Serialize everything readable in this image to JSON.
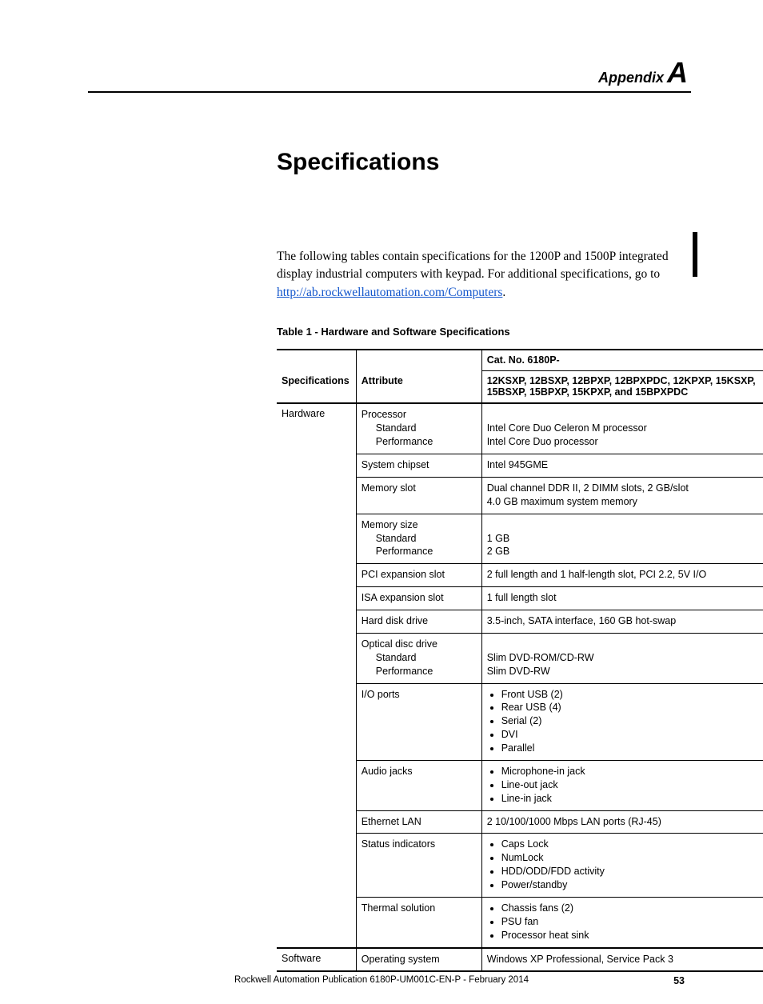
{
  "header": {
    "appendix_word": "Appendix",
    "appendix_letter": "A"
  },
  "title": "Specifications",
  "intro": {
    "text_before_link": "The following tables contain specifications for the 1200P and 1500P integrated display industrial computers with keypad. For additional specifications, go to ",
    "link_text": "http://ab.rockwellautomation.com/Computers",
    "text_after_link": "."
  },
  "table": {
    "caption": "Table 1 - Hardware and Software Specifications",
    "col_headers": {
      "specifications": "Specifications",
      "attribute": "Attribute",
      "catno_label": "Cat. No. 6180P-",
      "catno_models": "12KSXP, 12BSXP, 12BPXP, 12BPXPDC, 12KPXP, 15KSXP, 15BSXP, 15BPXP, 15KPXP, and 15BPXPDC"
    },
    "groups": [
      {
        "group_label": "Hardware",
        "rows": [
          {
            "attr_main": "Processor",
            "attr_subs": [
              "Standard",
              "Performance"
            ],
            "value_lines": [
              "",
              "Intel Core Duo Celeron M processor",
              "Intel Core Duo processor"
            ]
          },
          {
            "attr_main": "System chipset",
            "value_lines": [
              "Intel 945GME"
            ]
          },
          {
            "attr_main": "Memory slot",
            "value_lines": [
              "Dual channel DDR II, 2 DIMM slots, 2 GB/slot",
              "4.0 GB maximum system memory"
            ]
          },
          {
            "attr_main": "Memory size",
            "attr_subs": [
              "Standard",
              "Performance"
            ],
            "value_lines": [
              "",
              "1 GB",
              "2 GB"
            ]
          },
          {
            "attr_main": "PCI expansion slot",
            "value_lines": [
              "2 full length and 1 half-length slot, PCI 2.2, 5V I/O"
            ]
          },
          {
            "attr_main": "ISA expansion slot",
            "value_lines": [
              "1 full length slot"
            ]
          },
          {
            "attr_main": "Hard disk drive",
            "value_lines": [
              "3.5-inch, SATA interface, 160 GB hot-swap"
            ]
          },
          {
            "attr_main": "Optical disc drive",
            "attr_subs": [
              "Standard",
              "Performance"
            ],
            "value_lines": [
              "",
              "Slim DVD-ROM/CD-RW",
              "Slim DVD-RW"
            ]
          },
          {
            "attr_main": "I/O ports",
            "value_bullets": [
              "Front USB (2)",
              "Rear USB (4)",
              "Serial (2)",
              "DVI",
              "Parallel"
            ]
          },
          {
            "attr_main": "Audio jacks",
            "value_bullets": [
              "Microphone-in jack",
              "Line-out jack",
              "Line-in jack"
            ]
          },
          {
            "attr_main": "Ethernet LAN",
            "value_lines": [
              "2 10/100/1000 Mbps LAN ports (RJ-45)"
            ]
          },
          {
            "attr_main": "Status indicators",
            "value_bullets": [
              "Caps Lock",
              "NumLock",
              "HDD/ODD/FDD activity",
              "Power/standby"
            ]
          },
          {
            "attr_main": "Thermal solution",
            "value_bullets": [
              "Chassis fans (2)",
              "PSU fan",
              "Processor heat sink"
            ]
          }
        ]
      },
      {
        "group_label": "Software",
        "rows": [
          {
            "attr_main": "Operating system",
            "value_lines": [
              "Windows XP Professional, Service Pack 3"
            ]
          }
        ]
      }
    ]
  },
  "footer": {
    "publication": "Rockwell Automation Publication 6180P-UM001C-EN-P - February 2014",
    "page": "53"
  },
  "style": {
    "link_color": "#1155cc",
    "text_color": "#000000",
    "page_bg": "#ffffff"
  }
}
